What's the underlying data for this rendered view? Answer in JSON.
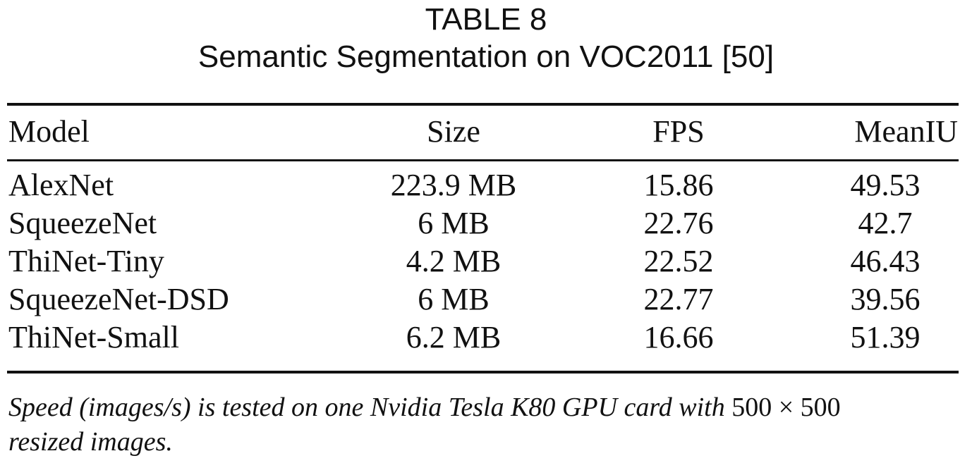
{
  "caption": {
    "label": "TABLE 8",
    "title": "Semantic Segmentation on VOC2011 [50]"
  },
  "table": {
    "headers": {
      "model": "Model",
      "size": "Size",
      "fps": "FPS",
      "meaniu": "MeanIU"
    },
    "rows": [
      {
        "model": "AlexNet",
        "size": "223.9 MB",
        "fps": "15.86",
        "meaniu": "49.53"
      },
      {
        "model": "SqueezeNet",
        "size": "6 MB",
        "fps": "22.76",
        "meaniu": "42.7"
      },
      {
        "model": "ThiNet-Tiny",
        "size": "4.2 MB",
        "fps": "22.52",
        "meaniu": "46.43"
      },
      {
        "model": "SqueezeNet-DSD",
        "size": "6 MB",
        "fps": "22.77",
        "meaniu": "39.56"
      },
      {
        "model": "ThiNet-Small",
        "size": "6.2 MB",
        "fps": "16.66",
        "meaniu": "51.39"
      }
    ]
  },
  "footnote": {
    "line1_italic": "Speed (images/s) is tested on one Nvidia Tesla K80 GPU card with ",
    "line1_math": "500 × 500",
    "line2_italic": "resized images."
  }
}
